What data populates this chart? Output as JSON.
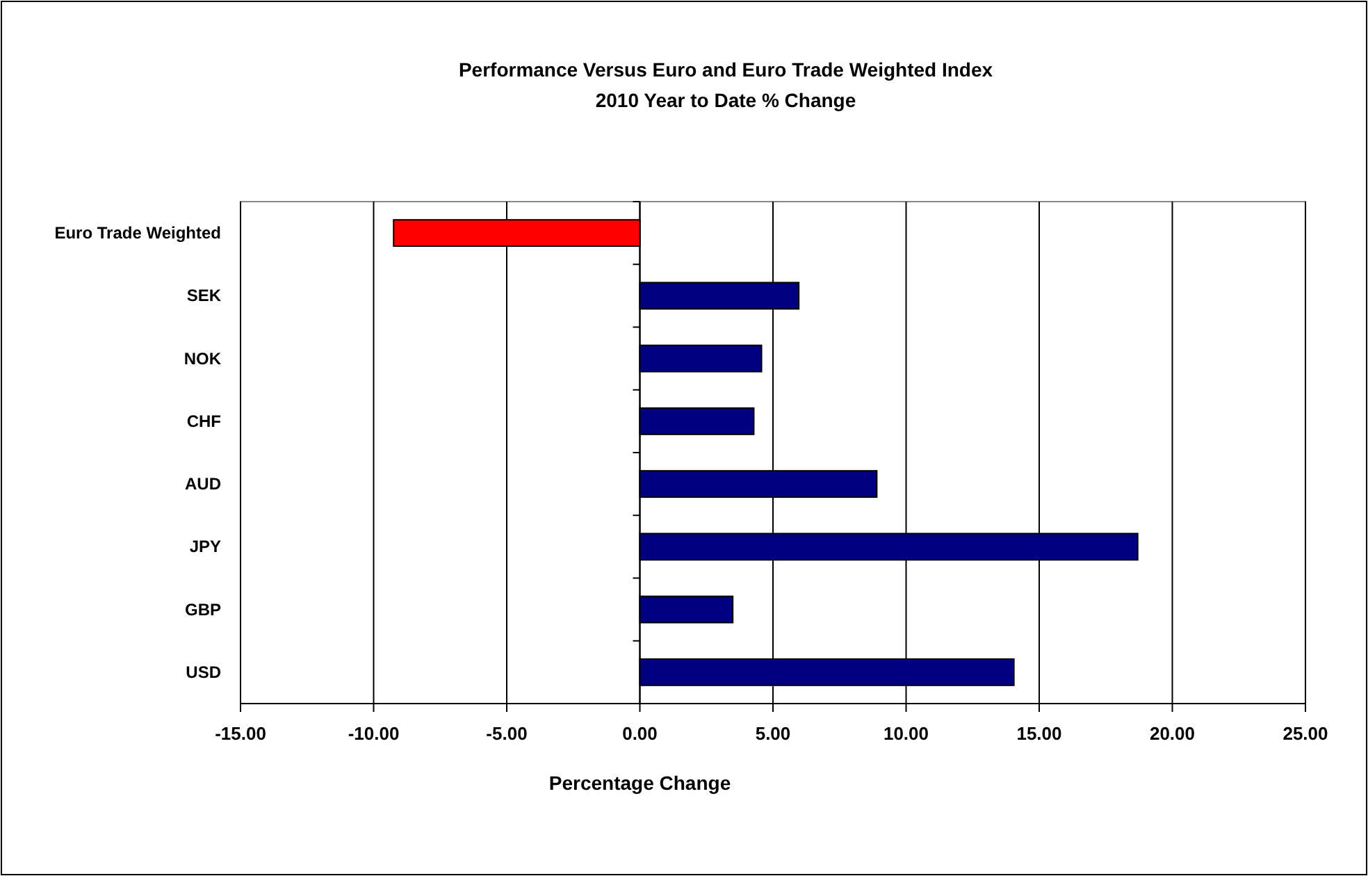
{
  "chart_data": {
    "type": "bar",
    "orientation": "horizontal",
    "title": "Performance Versus Euro and Euro Trade Weighted Index\n2010 Year to Date % Change",
    "xlabel": "Percentage Change",
    "categories": [
      "Euro Trade Weighted",
      "SEK",
      "NOK",
      "CHF",
      "AUD",
      "JPY",
      "GBP",
      "USD"
    ],
    "values": [
      -9.25,
      5.97,
      4.57,
      4.28,
      8.9,
      18.7,
      3.49,
      14.05
    ],
    "colors": [
      "#ff0000",
      "#000080",
      "#000080",
      "#000080",
      "#000080",
      "#000080",
      "#000080",
      "#000080"
    ],
    "xlim": [
      -15,
      25
    ],
    "xticks": [
      {
        "value": -15,
        "label": "-15.00"
      },
      {
        "value": -10,
        "label": "-10.00"
      },
      {
        "value": -5,
        "label": "-5.00"
      },
      {
        "value": 0,
        "label": "0.00"
      },
      {
        "value": 5,
        "label": "5.00"
      },
      {
        "value": 10,
        "label": "10.00"
      },
      {
        "value": 15,
        "label": "15.00"
      },
      {
        "value": 20,
        "label": "20.00"
      },
      {
        "value": 25,
        "label": "25.00"
      }
    ],
    "grid": "x"
  }
}
